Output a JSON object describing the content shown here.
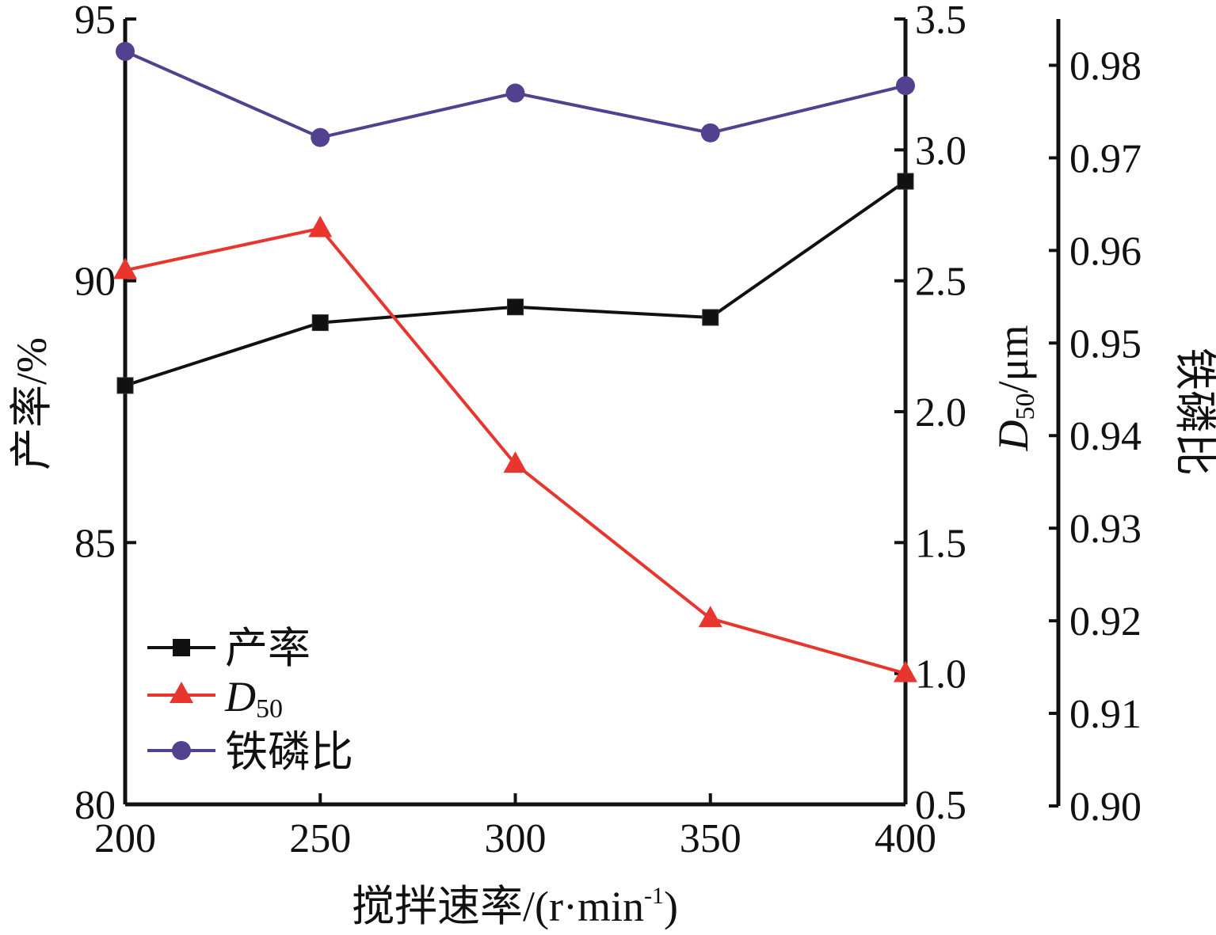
{
  "chart_data": {
    "type": "line",
    "x": [
      200,
      250,
      300,
      350,
      400
    ],
    "xlabel": "搅拌速率/(r·min",
    "xlabel_sup": "-1",
    "xlabel_close": ")",
    "xlim": [
      200,
      400
    ],
    "xticks": [
      "200",
      "250",
      "300",
      "350",
      "400"
    ],
    "axes": {
      "left": {
        "label": "产率/%",
        "ylim": [
          80,
          95
        ],
        "ticks": [
          "80",
          "85",
          "90",
          "95"
        ],
        "tick_values": [
          80,
          85,
          90,
          95
        ]
      },
      "right1": {
        "label_main": "D",
        "label_sub": "50",
        "label_rest": "/μm",
        "ylim": [
          0.5,
          3.5
        ],
        "ticks": [
          "0.5",
          "1.0",
          "1.5",
          "2.0",
          "2.5",
          "3.0",
          "3.5"
        ],
        "tick_values": [
          0.5,
          1.0,
          1.5,
          2.0,
          2.5,
          3.0,
          3.5
        ]
      },
      "right2": {
        "label": "铁磷比",
        "ylim": [
          0.9,
          0.985
        ],
        "ticks": [
          "0.90",
          "0.91",
          "0.92",
          "0.93",
          "0.94",
          "0.95",
          "0.96",
          "0.97",
          "0.98"
        ],
        "tick_values": [
          0.9,
          0.91,
          0.92,
          0.93,
          0.94,
          0.95,
          0.96,
          0.97,
          0.98
        ]
      }
    },
    "series": [
      {
        "name": "产率",
        "axis": "left",
        "marker": "square",
        "color": "#111111",
        "values": [
          88.0,
          89.2,
          89.5,
          89.3,
          91.9
        ]
      },
      {
        "name": "D",
        "name_sub": "50",
        "axis": "right1",
        "marker": "triangle",
        "color": "#e8352e",
        "values": [
          2.54,
          2.7,
          1.8,
          1.21,
          1.0
        ]
      },
      {
        "name": "铁磷比",
        "axis": "right2",
        "marker": "circle",
        "color": "#52418e",
        "values": [
          0.9815,
          0.9722,
          0.977,
          0.9727,
          0.9778
        ]
      }
    ],
    "legend_position": "bottom-left",
    "grid": false
  }
}
